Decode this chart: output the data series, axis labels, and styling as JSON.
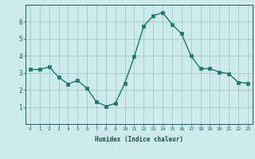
{
  "x": [
    0,
    1,
    2,
    3,
    4,
    5,
    6,
    7,
    8,
    9,
    10,
    11,
    12,
    13,
    14,
    15,
    16,
    17,
    18,
    19,
    20,
    21,
    22,
    23
  ],
  "y": [
    3.2,
    3.2,
    3.35,
    2.75,
    2.35,
    2.55,
    2.1,
    1.3,
    1.05,
    1.2,
    2.4,
    3.95,
    5.75,
    6.35,
    6.55,
    5.85,
    5.3,
    4.0,
    3.25,
    3.25,
    3.05,
    2.95,
    2.45,
    2.4
  ],
  "line_color": "#1a7a6e",
  "marker": "s",
  "markersize": 2.2,
  "linewidth": 1.0,
  "xlabel": "Humidex (Indice chaleur)",
  "background_color": "#ceeaea",
  "grid_color": "#a0c8c8",
  "ylim": [
    0,
    7
  ],
  "xlim": [
    -0.5,
    23.5
  ],
  "yticks": [
    1,
    2,
    3,
    4,
    5,
    6
  ],
  "xticks": [
    0,
    1,
    2,
    3,
    4,
    5,
    6,
    7,
    8,
    9,
    10,
    11,
    12,
    13,
    14,
    15,
    16,
    17,
    18,
    19,
    20,
    21,
    22,
    23
  ],
  "tick_color": "#1a6060",
  "label_color": "#1a5050"
}
